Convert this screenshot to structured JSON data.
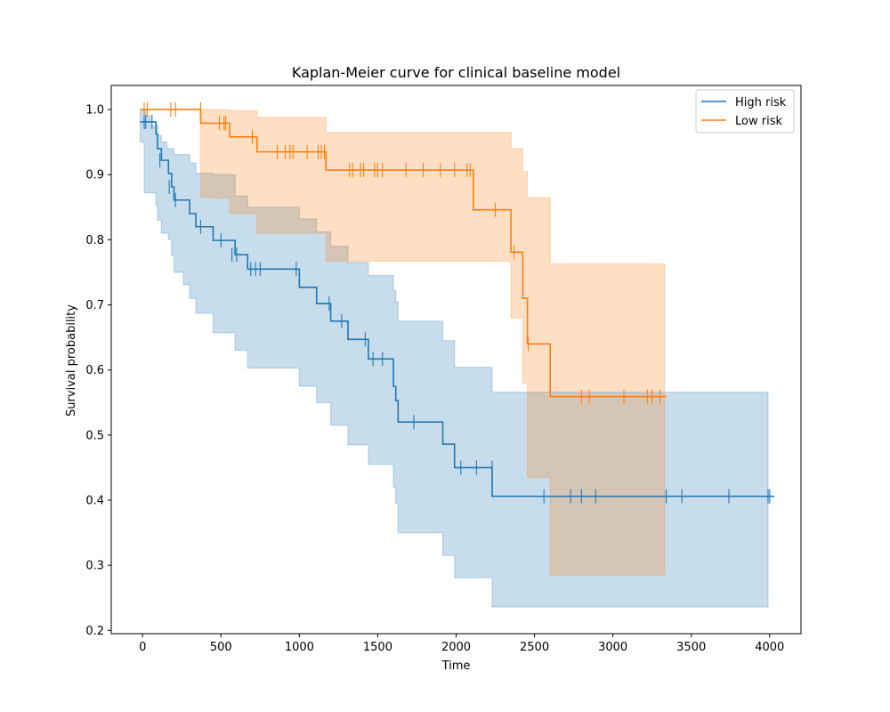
{
  "chart_data": {
    "type": "line",
    "title": "Kaplan-Meier curve for clinical baseline model",
    "xlabel": "Time",
    "ylabel": "Survival probability",
    "xlim": [
      -200,
      4200
    ],
    "ylim": [
      0.195,
      1.037
    ],
    "xticks": [
      0,
      500,
      1000,
      1500,
      2000,
      2500,
      3000,
      3500,
      4000
    ],
    "yticks": [
      0.2,
      0.3,
      0.4,
      0.5,
      0.6,
      0.7,
      0.8,
      0.9,
      1.0
    ],
    "grid": false,
    "legend_position": "top-right",
    "series": [
      {
        "name": "High risk",
        "color": "#1f77b4",
        "ci_color": "#1f77b4",
        "steps": [
          [
            -15,
            0.981
          ],
          [
            85,
            0.962
          ],
          [
            95,
            0.94
          ],
          [
            120,
            0.922
          ],
          [
            165,
            0.902
          ],
          [
            185,
            0.881
          ],
          [
            200,
            0.861
          ],
          [
            300,
            0.84
          ],
          [
            340,
            0.82
          ],
          [
            450,
            0.799
          ],
          [
            590,
            0.777
          ],
          [
            670,
            0.755
          ],
          [
            1000,
            0.727
          ],
          [
            1110,
            0.702
          ],
          [
            1200,
            0.675
          ],
          [
            1310,
            0.647
          ],
          [
            1440,
            0.617
          ],
          [
            1600,
            0.575
          ],
          [
            1615,
            0.553
          ],
          [
            1630,
            0.52
          ],
          [
            1915,
            0.486
          ],
          [
            1990,
            0.45
          ],
          [
            2230,
            0.406
          ],
          [
            4030,
            0.406
          ]
        ],
        "ci_upper": [
          [
            -15,
            1.0
          ],
          [
            20,
            0.99
          ],
          [
            50,
            0.975
          ],
          [
            100,
            0.96
          ],
          [
            120,
            0.95
          ],
          [
            155,
            0.94
          ],
          [
            200,
            0.931
          ],
          [
            300,
            0.918
          ],
          [
            340,
            0.902
          ],
          [
            450,
            0.9
          ],
          [
            590,
            0.867
          ],
          [
            670,
            0.85
          ],
          [
            1000,
            0.832
          ],
          [
            1110,
            0.812
          ],
          [
            1200,
            0.79
          ],
          [
            1310,
            0.765
          ],
          [
            1440,
            0.745
          ],
          [
            1600,
            0.722
          ],
          [
            1615,
            0.705
          ],
          [
            1630,
            0.675
          ],
          [
            1915,
            0.645
          ],
          [
            1990,
            0.604
          ],
          [
            2230,
            0.566
          ],
          [
            3990,
            0.566
          ]
        ],
        "ci_lower": [
          [
            -15,
            0.95
          ],
          [
            10,
            0.872
          ],
          [
            85,
            0.853
          ],
          [
            95,
            0.83
          ],
          [
            120,
            0.81
          ],
          [
            165,
            0.8
          ],
          [
            185,
            0.776
          ],
          [
            200,
            0.75
          ],
          [
            260,
            0.731
          ],
          [
            300,
            0.71
          ],
          [
            340,
            0.687
          ],
          [
            450,
            0.657
          ],
          [
            590,
            0.63
          ],
          [
            670,
            0.603
          ],
          [
            1000,
            0.575
          ],
          [
            1110,
            0.55
          ],
          [
            1200,
            0.515
          ],
          [
            1310,
            0.485
          ],
          [
            1440,
            0.455
          ],
          [
            1600,
            0.42
          ],
          [
            1615,
            0.395
          ],
          [
            1630,
            0.35
          ],
          [
            1915,
            0.315
          ],
          [
            1990,
            0.281
          ],
          [
            2230,
            0.236
          ],
          [
            3990,
            0.236
          ]
        ],
        "censored": [
          [
            10,
            0.981
          ],
          [
            20,
            0.981
          ],
          [
            60,
            0.981
          ],
          [
            110,
            0.922
          ],
          [
            170,
            0.881
          ],
          [
            210,
            0.861
          ],
          [
            370,
            0.82
          ],
          [
            500,
            0.799
          ],
          [
            570,
            0.777
          ],
          [
            600,
            0.777
          ],
          [
            690,
            0.755
          ],
          [
            720,
            0.755
          ],
          [
            750,
            0.755
          ],
          [
            980,
            0.755
          ],
          [
            1190,
            0.702
          ],
          [
            1270,
            0.675
          ],
          [
            1420,
            0.647
          ],
          [
            1470,
            0.617
          ],
          [
            1530,
            0.617
          ],
          [
            1730,
            0.52
          ],
          [
            2030,
            0.45
          ],
          [
            2130,
            0.45
          ],
          [
            2230,
            0.45
          ],
          [
            2560,
            0.406
          ],
          [
            2730,
            0.406
          ],
          [
            2800,
            0.406
          ],
          [
            2890,
            0.406
          ],
          [
            3340,
            0.406
          ],
          [
            3440,
            0.406
          ],
          [
            3740,
            0.406
          ],
          [
            3990,
            0.406
          ],
          [
            4000,
            0.406
          ]
        ],
        "values": [
          0.981,
          0.922,
          0.861,
          0.799,
          0.755,
          0.727,
          0.647,
          0.52,
          0.45,
          0.406
        ]
      },
      {
        "name": "Low risk",
        "color": "#ff7f0e",
        "ci_color": "#ff7f0e",
        "steps": [
          [
            -15,
            1.0
          ],
          [
            370,
            0.979
          ],
          [
            555,
            0.958
          ],
          [
            730,
            0.935
          ],
          [
            1170,
            0.907
          ],
          [
            2110,
            0.846
          ],
          [
            2350,
            0.781
          ],
          [
            2425,
            0.71
          ],
          [
            2455,
            0.64
          ],
          [
            2600,
            0.559
          ],
          [
            3340,
            0.559
          ]
        ],
        "ci_upper": [
          [
            370,
            1.0
          ],
          [
            555,
            0.998
          ],
          [
            730,
            0.988
          ],
          [
            1170,
            0.965
          ],
          [
            2110,
            0.965
          ],
          [
            2350,
            0.94
          ],
          [
            2425,
            0.905
          ],
          [
            2455,
            0.865
          ],
          [
            2600,
            0.763
          ],
          [
            3330,
            0.763
          ]
        ],
        "ci_lower": [
          [
            370,
            0.865
          ],
          [
            455,
            0.864
          ],
          [
            555,
            0.84
          ],
          [
            730,
            0.81
          ],
          [
            1170,
            0.767
          ],
          [
            2110,
            0.767
          ],
          [
            2350,
            0.68
          ],
          [
            2425,
            0.58
          ],
          [
            2455,
            0.435
          ],
          [
            2600,
            0.285
          ],
          [
            3330,
            0.285
          ]
        ],
        "censored": [
          [
            10,
            1.0
          ],
          [
            30,
            1.0
          ],
          [
            180,
            1.0
          ],
          [
            210,
            1.0
          ],
          [
            370,
            1.0
          ],
          [
            490,
            0.979
          ],
          [
            520,
            0.979
          ],
          [
            530,
            0.979
          ],
          [
            700,
            0.958
          ],
          [
            860,
            0.935
          ],
          [
            910,
            0.935
          ],
          [
            940,
            0.935
          ],
          [
            960,
            0.935
          ],
          [
            1050,
            0.935
          ],
          [
            1120,
            0.935
          ],
          [
            1140,
            0.935
          ],
          [
            1160,
            0.935
          ],
          [
            1320,
            0.907
          ],
          [
            1340,
            0.907
          ],
          [
            1390,
            0.907
          ],
          [
            1410,
            0.907
          ],
          [
            1480,
            0.907
          ],
          [
            1500,
            0.907
          ],
          [
            1530,
            0.907
          ],
          [
            1680,
            0.907
          ],
          [
            1790,
            0.907
          ],
          [
            1900,
            0.907
          ],
          [
            1990,
            0.907
          ],
          [
            2070,
            0.907
          ],
          [
            2090,
            0.907
          ],
          [
            2250,
            0.846
          ],
          [
            2370,
            0.781
          ],
          [
            2460,
            0.64
          ],
          [
            2800,
            0.559
          ],
          [
            2850,
            0.559
          ],
          [
            3070,
            0.559
          ],
          [
            3220,
            0.559
          ],
          [
            3250,
            0.559
          ],
          [
            3300,
            0.559
          ]
        ],
        "values": [
          1.0,
          0.979,
          0.958,
          0.935,
          0.907,
          0.846,
          0.781,
          0.71,
          0.64,
          0.559
        ]
      }
    ]
  }
}
